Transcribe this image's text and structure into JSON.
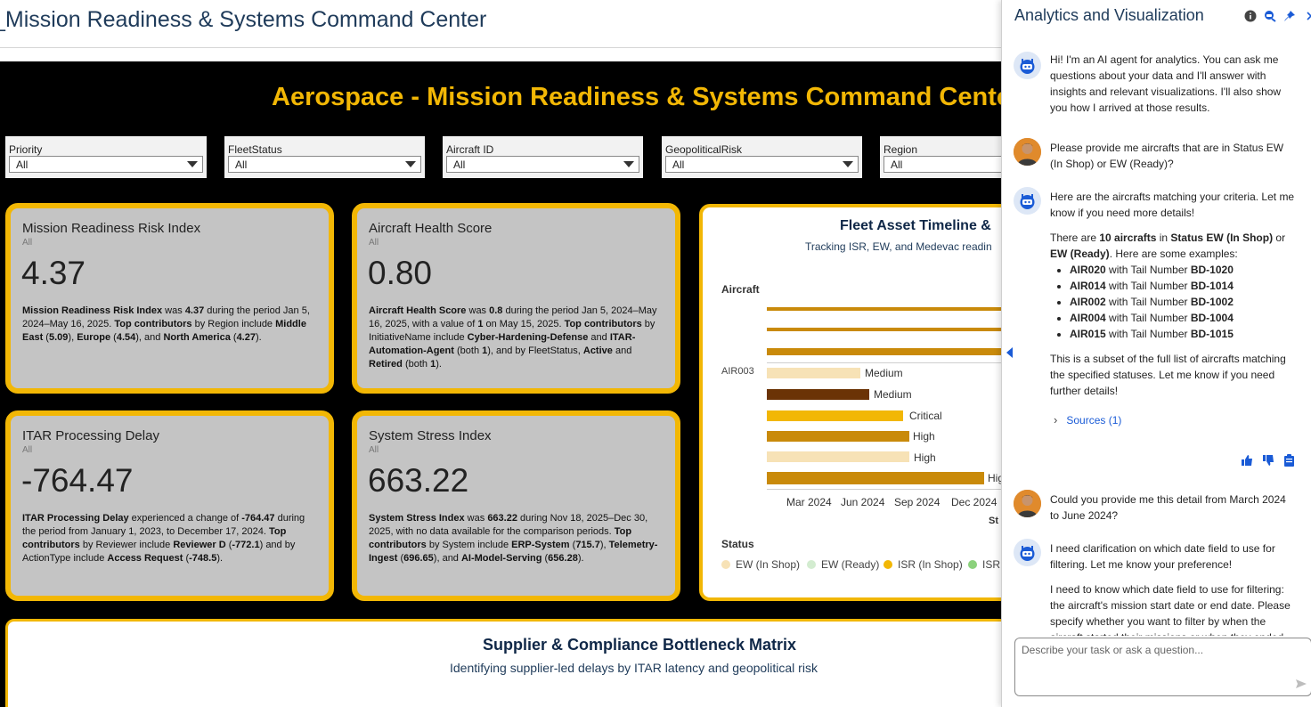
{
  "page": {
    "title": "_Mission Readiness & Systems Command Center"
  },
  "dashboard": {
    "title": "Aerospace - Mission Readiness & Systems Command Center",
    "filters": [
      {
        "label": "Priority",
        "value": "All"
      },
      {
        "label": "FleetStatus",
        "value": "All"
      },
      {
        "label": "Aircraft ID",
        "value": "All"
      },
      {
        "label": "GeopoliticalRisk",
        "value": "All"
      },
      {
        "label": "Region",
        "value": "All"
      }
    ],
    "kpis": [
      {
        "title": "Mission Readiness Risk Index",
        "subtitle": "All",
        "value": "4.37",
        "narrative": [
          {
            "t": "Mission Readiness Risk Index",
            "b": true
          },
          {
            "t": " was "
          },
          {
            "t": "4.37",
            "b": true
          },
          {
            "t": " during the period Jan 5, 2024–May 16, 2025. "
          },
          {
            "t": "Top contributors",
            "b": true
          },
          {
            "t": " by Region include "
          },
          {
            "t": "Middle East",
            "b": true
          },
          {
            "t": " ("
          },
          {
            "t": "5.09",
            "b": true
          },
          {
            "t": "), "
          },
          {
            "t": "Europe",
            "b": true
          },
          {
            "t": " ("
          },
          {
            "t": "4.54",
            "b": true
          },
          {
            "t": "), and "
          },
          {
            "t": "North America",
            "b": true
          },
          {
            "t": " ("
          },
          {
            "t": "4.27",
            "b": true
          },
          {
            "t": ")."
          }
        ]
      },
      {
        "title": "Aircraft Health Score",
        "subtitle": "All",
        "value": "0.80",
        "narrative": [
          {
            "t": "Aircraft Health Score",
            "b": true
          },
          {
            "t": " was "
          },
          {
            "t": "0.8",
            "b": true
          },
          {
            "t": " during the period Jan 5, 2024–May 16, 2025, with a value of "
          },
          {
            "t": "1",
            "b": true
          },
          {
            "t": " on May 15, 2025. "
          },
          {
            "t": "Top contributors",
            "b": true
          },
          {
            "t": " by InitiativeName include "
          },
          {
            "t": "Cyber-Hardening-Defense",
            "b": true
          },
          {
            "t": " and "
          },
          {
            "t": "ITAR-Automation-Agent",
            "b": true
          },
          {
            "t": " (both "
          },
          {
            "t": "1",
            "b": true
          },
          {
            "t": "), and by FleetStatus, "
          },
          {
            "t": "Active",
            "b": true
          },
          {
            "t": " and "
          },
          {
            "t": "Retired",
            "b": true
          },
          {
            "t": " (both "
          },
          {
            "t": "1",
            "b": true
          },
          {
            "t": ")."
          }
        ]
      },
      {
        "title": "ITAR Processing Delay",
        "subtitle": "All",
        "value": "-764.47",
        "narrative": [
          {
            "t": "ITAR Processing Delay",
            "b": true
          },
          {
            "t": " experienced a change of "
          },
          {
            "t": "-764.47",
            "b": true
          },
          {
            "t": " during the period from January 1, 2023, to December 17, 2024. "
          },
          {
            "t": "Top contributors",
            "b": true
          },
          {
            "t": " by Reviewer include "
          },
          {
            "t": "Reviewer D",
            "b": true
          },
          {
            "t": " ("
          },
          {
            "t": "-772.1",
            "b": true
          },
          {
            "t": ") and by ActionType include "
          },
          {
            "t": "Access Request",
            "b": true
          },
          {
            "t": " ("
          },
          {
            "t": "-748.5",
            "b": true
          },
          {
            "t": ")."
          }
        ]
      },
      {
        "title": "System Stress Index",
        "subtitle": "All",
        "value": "663.22",
        "narrative": [
          {
            "t": "System Stress Index",
            "b": true
          },
          {
            "t": " was "
          },
          {
            "t": "663.22",
            "b": true
          },
          {
            "t": " during Nov 18, 2025–Dec 30, 2025, with no data available for the comparison periods. "
          },
          {
            "t": "Top contributors",
            "b": true
          },
          {
            "t": " by System include "
          },
          {
            "t": "ERP-System",
            "b": true
          },
          {
            "t": " ("
          },
          {
            "t": "715.7",
            "b": true
          },
          {
            "t": "), "
          },
          {
            "t": "Telemetry-Ingest",
            "b": true
          },
          {
            "t": " ("
          },
          {
            "t": "696.65",
            "b": true
          },
          {
            "t": "), and "
          },
          {
            "t": "AI-Model-Serving",
            "b": true
          },
          {
            "t": " ("
          },
          {
            "t": "656.28",
            "b": true
          },
          {
            "t": ")."
          }
        ]
      }
    ],
    "timeline": {
      "title": "Fleet Asset Timeline &",
      "subtitle": "Tracking ISR, EW, and Medevac readin",
      "y_axis_title": "Aircraft",
      "y_label": "AIR003",
      "x_ticks": [
        "Mar 2024",
        "Jun 2024",
        "Sep 2024",
        "Dec 2024"
      ],
      "x_axis_title": "St",
      "legend_title": "Status",
      "legend": [
        {
          "label": "EW (In Shop)",
          "color": "#f7e2b6"
        },
        {
          "label": "EW (Ready)",
          "color": "#d3ecd0"
        },
        {
          "label": "ISR (In Shop)",
          "color": "#f2b705"
        },
        {
          "label": "ISR",
          "color": "#8bd17c"
        }
      ],
      "bars": [
        {
          "label": "",
          "color": "#c98a0a"
        },
        {
          "label": "",
          "color": "#c98a0a"
        },
        {
          "label": "",
          "color": "#c98a0a"
        },
        {
          "label": "Medium",
          "color": "#f7e2b6"
        },
        {
          "label": "Medium",
          "color": "#6b3306"
        },
        {
          "label": "Critical",
          "color": "#f2b705"
        },
        {
          "label": "High",
          "color": "#c98a0a"
        },
        {
          "label": "High",
          "color": "#f7e2b6"
        },
        {
          "label": "Hig",
          "color": "#c98a0a"
        }
      ]
    },
    "supplier": {
      "title": "Supplier & Compliance Bottleneck Matrix",
      "subtitle": "Identifying supplier-led delays by ITAR latency and geopolitical risk"
    }
  },
  "copilot": {
    "title": "Analytics and Visualization",
    "icons": [
      "info-icon",
      "agent-icon",
      "pin-icon",
      "close-icon"
    ],
    "messages": {
      "m1": "Hi! I'm an AI agent for analytics. You can ask me questions about your data and I'll answer with insights and relevant visualizations. I'll also show you how I arrived at those results.",
      "m2": "Please provide me aircrafts that are in Status EW (In Shop) or EW (Ready)?",
      "m3_intro": "Here are the aircrafts matching your criteria. Let me know if you need more details!",
      "m3_summary": [
        {
          "t": "There are "
        },
        {
          "t": "10 aircrafts",
          "b": true
        },
        {
          "t": " in "
        },
        {
          "t": "Status EW (In Shop)",
          "b": true
        },
        {
          "t": " or "
        },
        {
          "t": "EW (Ready)",
          "b": true
        },
        {
          "t": ". Here are some examples:"
        }
      ],
      "m3_list": [
        {
          "aircraft": "AIR020",
          "mid": " with Tail Number ",
          "tail": "BD-1020"
        },
        {
          "aircraft": "AIR014",
          "mid": " with Tail Number ",
          "tail": "BD-1014"
        },
        {
          "aircraft": "AIR002",
          "mid": " with Tail Number ",
          "tail": "BD-1002"
        },
        {
          "aircraft": "AIR004",
          "mid": " with Tail Number ",
          "tail": "BD-1004"
        },
        {
          "aircraft": "AIR015",
          "mid": " with Tail Number ",
          "tail": "BD-1015"
        }
      ],
      "m3_outro": "This is a subset of the full list of aircrafts matching the specified statuses. Let me know if you need further details!",
      "sources_label": "Sources (1)",
      "m4": "Could you provide me this detail from March 2024 to June 2024?",
      "m5a": "I need clarification on which date field to use for filtering. Let me know your preference!",
      "m5b": "I need to know which date field to use for filtering: the aircraft's mission start date or end date. Please specify whether you want to filter by when the aircraft started their missions or when they ended."
    },
    "input_placeholder": "Describe your task or ask a question..."
  }
}
